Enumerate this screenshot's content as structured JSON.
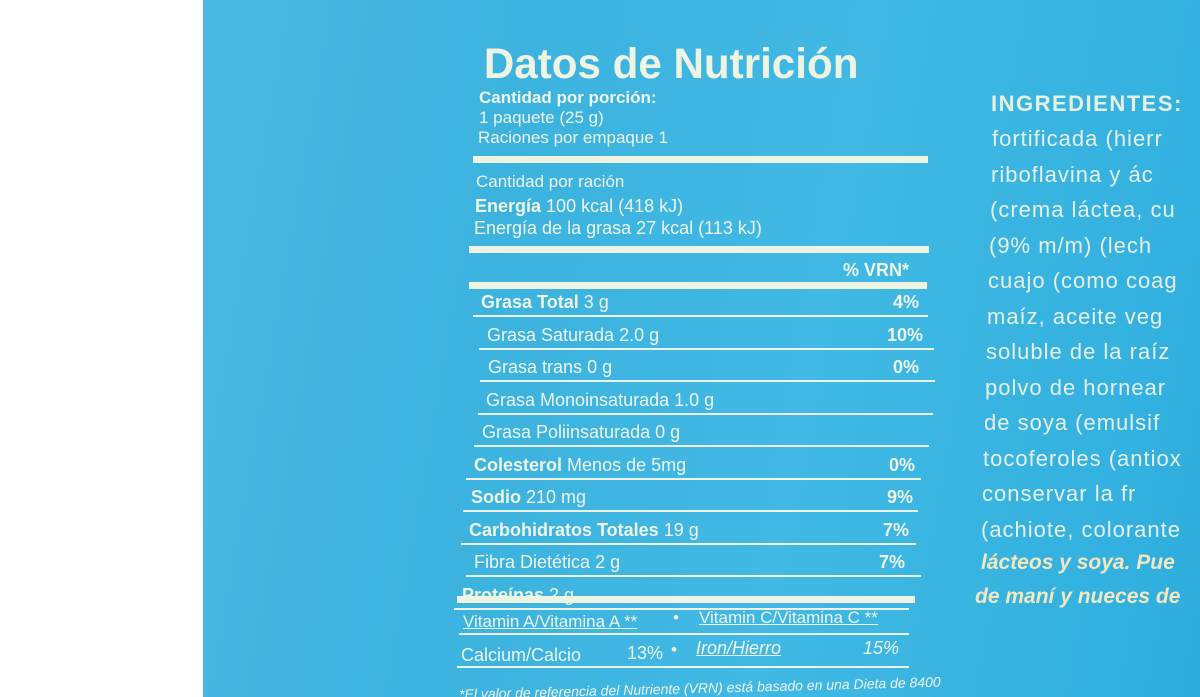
{
  "label": {
    "title": "Datos de Nutrición",
    "serving_heading": "Cantidad por porción:",
    "serving_size": "1 paquete (25 g)",
    "servings": "Raciones por empaque 1",
    "amount_per": "Cantidad por ración",
    "energy_label": "Energía",
    "energy_value": "100 kcal (418 kJ)",
    "fat_energy": "Energía de la grasa 27 kcal (113 kJ)",
    "vrn_header": "% VRN*",
    "rows": [
      {
        "name": "Grasa Total",
        "amount": "3 g",
        "pct": "4%",
        "bold": true
      },
      {
        "name": "Grasa Saturada",
        "amount": "2.0 g",
        "pct": "10%",
        "bold": false
      },
      {
        "name": "Grasa trans",
        "amount": "0 g",
        "pct": "0%",
        "bold": false
      },
      {
        "name": "Grasa Monoinsaturada",
        "amount": "1.0 g",
        "pct": "",
        "bold": false
      },
      {
        "name": "Grasa Poliinsaturada",
        "amount": "0 g",
        "pct": "",
        "bold": false
      },
      {
        "name": "Colesterol",
        "amount": "Menos de 5mg",
        "pct": "0%",
        "bold": true
      },
      {
        "name": "Sodio",
        "amount": "210 mg",
        "pct": "9%",
        "bold": true
      },
      {
        "name": "Carbohidratos Totales",
        "amount": "19 g",
        "pct": "7%",
        "bold": true
      },
      {
        "name": "Fibra Dietética",
        "amount": "2 g",
        "pct": "7%",
        "bold": false
      },
      {
        "name": "Proteínas",
        "amount": "2 g",
        "pct": "",
        "bold": true
      }
    ],
    "vitamin_a": "Vitamin A/Vitamina A **",
    "vitamin_c": "Vitamin C/Vitamina C  **",
    "calcium": "Calcium/Calcio",
    "calcium_pct": "13%",
    "iron": "Iron/Hierro",
    "iron_pct": "15%",
    "bullet": "•",
    "footnote": "*El valor de referencia del Nutriente (VRN) está basado en una Dieta de 8400"
  },
  "ingredients": {
    "heading": "INGREDIENTES:",
    "lines": [
      "fortificada (hierr",
      "riboflavina y ác",
      "(crema láctea, cu",
      "(9% m/m) (lech",
      "cuajo (como coag",
      "maíz, aceite veg",
      "soluble de la raíz",
      "polvo de hornear",
      "de soya (emulsif",
      "tocoferoles (antiox",
      "conservar la fr",
      "(achiote, colorante"
    ],
    "allergen_1": "lácteos y soya. Pue",
    "allergen_2": "de maní y nueces de"
  },
  "colors": {
    "bag": "#3cb3df",
    "text": "#eef3e2"
  }
}
